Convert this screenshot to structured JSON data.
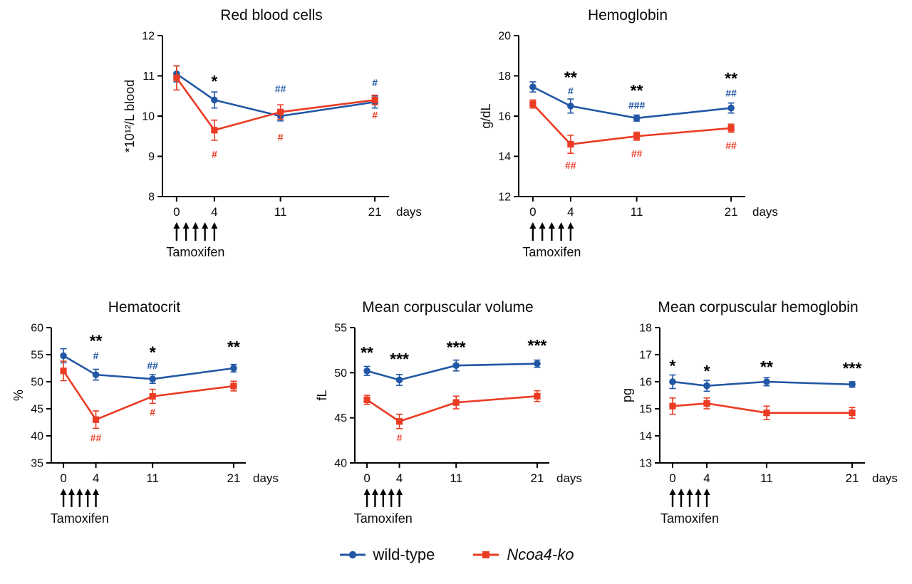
{
  "figure": {
    "legend": [
      {
        "label": "wild-type",
        "color": "#2257A5",
        "marker": "circle"
      },
      {
        "label": "Ncoa4-ko",
        "color": "#EA3B23",
        "marker": "square"
      }
    ]
  },
  "chart_data": [
    {
      "type": "line",
      "title": "Red blood cells",
      "ylabel": "*10¹²/L blood",
      "xlabel": "days",
      "x": [
        0,
        4,
        11,
        21
      ],
      "xlim": [
        -1.5,
        22.5
      ],
      "ylim": [
        8,
        12
      ],
      "yticks": [
        8,
        9,
        10,
        11,
        12
      ],
      "series": [
        {
          "name": "wild-type",
          "color": "#2257A5",
          "marker": "circle",
          "values": [
            11.05,
            10.4,
            10.0,
            10.35
          ],
          "errors": [
            0.2,
            0.2,
            0.12,
            0.15
          ]
        },
        {
          "name": "Ncoa4-ko",
          "color": "#EA3B23",
          "marker": "square",
          "values": [
            10.95,
            9.65,
            10.1,
            10.4
          ],
          "errors": [
            0.3,
            0.25,
            0.18,
            0.12
          ]
        }
      ],
      "annotations": [
        {
          "x": 4,
          "y": 10.9,
          "text": "*",
          "color": "#000000"
        },
        {
          "x": 4,
          "y": 9.05,
          "text": "#",
          "color": "#EA3B23"
        },
        {
          "x": 11,
          "y": 10.68,
          "text": "##",
          "color": "#2257A5"
        },
        {
          "x": 11,
          "y": 9.48,
          "text": "#",
          "color": "#EA3B23"
        },
        {
          "x": 21,
          "y": 10.83,
          "text": "#",
          "color": "#2257A5"
        },
        {
          "x": 21,
          "y": 10.03,
          "text": "#",
          "color": "#EA3B23"
        }
      ],
      "treatment": {
        "label": "Tamoxifen",
        "arrow_days": [
          0,
          1,
          2,
          3,
          4
        ]
      }
    },
    {
      "type": "line",
      "title": "Hemoglobin",
      "ylabel": "g/dL",
      "xlabel": "days",
      "x": [
        0,
        4,
        11,
        21
      ],
      "xlim": [
        -1.5,
        22.5
      ],
      "ylim": [
        12,
        20
      ],
      "yticks": [
        12,
        14,
        16,
        18,
        20
      ],
      "series": [
        {
          "name": "wild-type",
          "color": "#2257A5",
          "marker": "circle",
          "values": [
            17.45,
            16.5,
            15.9,
            16.4
          ],
          "errors": [
            0.25,
            0.35,
            0.15,
            0.25
          ]
        },
        {
          "name": "Ncoa4-ko",
          "color": "#EA3B23",
          "marker": "square",
          "values": [
            16.6,
            14.6,
            15.0,
            15.4
          ],
          "errors": [
            0.2,
            0.45,
            0.2,
            0.2
          ]
        }
      ],
      "annotations": [
        {
          "x": 4,
          "y": 18.0,
          "text": "**",
          "color": "#000000"
        },
        {
          "x": 4,
          "y": 17.25,
          "text": "#",
          "color": "#2257A5"
        },
        {
          "x": 4,
          "y": 13.55,
          "text": "##",
          "color": "#EA3B23"
        },
        {
          "x": 11,
          "y": 17.35,
          "text": "**",
          "color": "#000000"
        },
        {
          "x": 11,
          "y": 16.55,
          "text": "###",
          "color": "#2257A5"
        },
        {
          "x": 11,
          "y": 14.15,
          "text": "##",
          "color": "#EA3B23"
        },
        {
          "x": 21,
          "y": 17.95,
          "text": "**",
          "color": "#000000"
        },
        {
          "x": 21,
          "y": 17.15,
          "text": "##",
          "color": "#2257A5"
        },
        {
          "x": 21,
          "y": 14.55,
          "text": "##",
          "color": "#EA3B23"
        }
      ],
      "treatment": {
        "label": "Tamoxifen",
        "arrow_days": [
          0,
          1,
          2,
          3,
          4
        ]
      }
    },
    {
      "type": "line",
      "title": "Hematocrit",
      "ylabel": "%",
      "xlabel": "days",
      "x": [
        0,
        4,
        11,
        21
      ],
      "xlim": [
        -1.5,
        22.5
      ],
      "ylim": [
        35,
        60
      ],
      "yticks": [
        35,
        40,
        45,
        50,
        55,
        60
      ],
      "series": [
        {
          "name": "wild-type",
          "color": "#2257A5",
          "marker": "circle",
          "values": [
            54.8,
            51.3,
            50.5,
            52.5
          ],
          "errors": [
            1.3,
            1.0,
            0.8,
            0.7
          ]
        },
        {
          "name": "Ncoa4-ko",
          "color": "#EA3B23",
          "marker": "square",
          "values": [
            52.0,
            43.0,
            47.3,
            49.2
          ],
          "errors": [
            1.8,
            1.6,
            1.3,
            0.9
          ]
        }
      ],
      "annotations": [
        {
          "x": 4,
          "y": 57.8,
          "text": "**",
          "color": "#000000"
        },
        {
          "x": 4,
          "y": 54.9,
          "text": "#",
          "color": "#2257A5"
        },
        {
          "x": 4,
          "y": 39.7,
          "text": "##",
          "color": "#EA3B23"
        },
        {
          "x": 11,
          "y": 55.7,
          "text": "*",
          "color": "#000000"
        },
        {
          "x": 11,
          "y": 53.0,
          "text": "##",
          "color": "#2257A5"
        },
        {
          "x": 11,
          "y": 44.4,
          "text": "#",
          "color": "#EA3B23"
        },
        {
          "x": 21,
          "y": 56.7,
          "text": "**",
          "color": "#000000"
        }
      ],
      "treatment": {
        "label": "Tamoxifen",
        "arrow_days": [
          0,
          1,
          2,
          3,
          4
        ]
      }
    },
    {
      "type": "line",
      "title": "Mean corpuscular volume",
      "ylabel": "fL",
      "xlabel": "days",
      "x": [
        0,
        4,
        11,
        21
      ],
      "xlim": [
        -1.5,
        22.5
      ],
      "ylim": [
        40,
        55
      ],
      "yticks": [
        40,
        45,
        50,
        55
      ],
      "series": [
        {
          "name": "wild-type",
          "color": "#2257A5",
          "marker": "circle",
          "values": [
            50.2,
            49.2,
            50.8,
            51.0
          ],
          "errors": [
            0.5,
            0.6,
            0.6,
            0.4
          ]
        },
        {
          "name": "Ncoa4-ko",
          "color": "#EA3B23",
          "marker": "square",
          "values": [
            47.0,
            44.6,
            46.7,
            47.4
          ],
          "errors": [
            0.5,
            0.8,
            0.7,
            0.6
          ]
        }
      ],
      "annotations": [
        {
          "x": 0,
          "y": 52.4,
          "text": "**",
          "color": "#000000"
        },
        {
          "x": 4,
          "y": 51.7,
          "text": "***",
          "color": "#000000"
        },
        {
          "x": 4,
          "y": 42.8,
          "text": "#",
          "color": "#EA3B23"
        },
        {
          "x": 11,
          "y": 53.0,
          "text": "***",
          "color": "#000000"
        },
        {
          "x": 21,
          "y": 53.2,
          "text": "***",
          "color": "#000000"
        }
      ],
      "treatment": {
        "label": "Tamoxifen",
        "arrow_days": [
          0,
          1,
          2,
          3,
          4
        ]
      }
    },
    {
      "type": "line",
      "title": "Mean corpuscular hemoglobin",
      "ylabel": "pg",
      "xlabel": "days",
      "x": [
        0,
        4,
        11,
        21
      ],
      "xlim": [
        -1.5,
        22.5
      ],
      "ylim": [
        13,
        18
      ],
      "yticks": [
        13,
        14,
        15,
        16,
        17,
        18
      ],
      "series": [
        {
          "name": "wild-type",
          "color": "#2257A5",
          "marker": "circle",
          "values": [
            16.0,
            15.85,
            16.0,
            15.9
          ],
          "errors": [
            0.25,
            0.2,
            0.15,
            0.1
          ]
        },
        {
          "name": "Ncoa4-ko",
          "color": "#EA3B23",
          "marker": "square",
          "values": [
            15.1,
            15.2,
            14.85,
            14.85
          ],
          "errors": [
            0.3,
            0.2,
            0.25,
            0.2
          ]
        }
      ],
      "annotations": [
        {
          "x": 0,
          "y": 16.65,
          "text": "*",
          "color": "#000000"
        },
        {
          "x": 4,
          "y": 16.45,
          "text": "*",
          "color": "#000000"
        },
        {
          "x": 11,
          "y": 16.6,
          "text": "**",
          "color": "#000000"
        },
        {
          "x": 21,
          "y": 16.55,
          "text": "***",
          "color": "#000000"
        }
      ],
      "treatment": {
        "label": "Tamoxifen",
        "arrow_days": [
          0,
          1,
          2,
          3,
          4
        ]
      }
    }
  ]
}
